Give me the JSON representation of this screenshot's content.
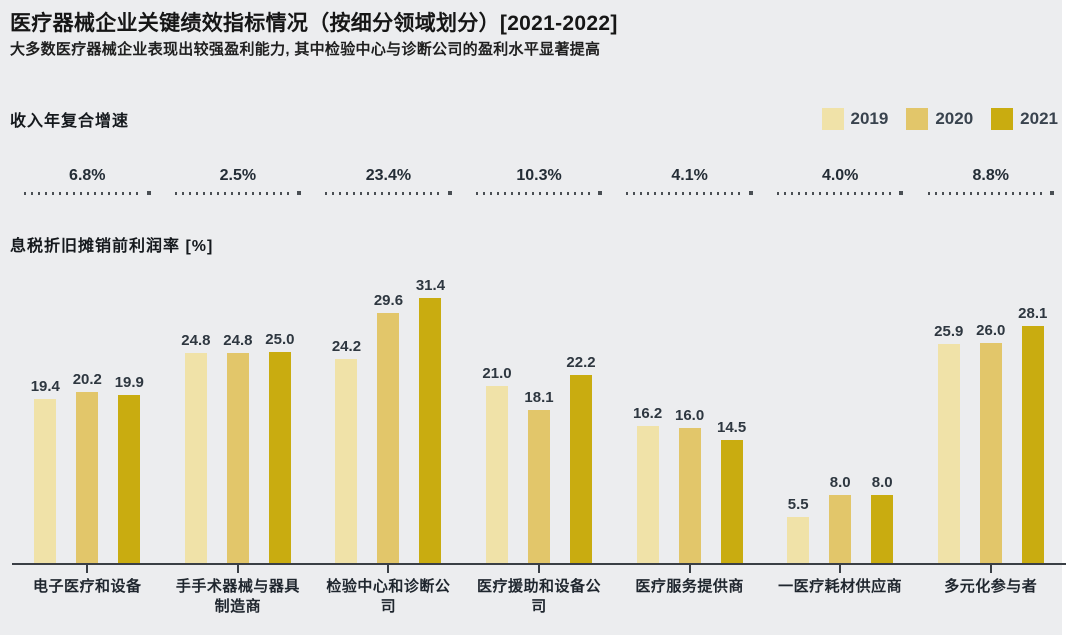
{
  "header": {
    "title": "医疗器械企业关键绩效指标情况（按细分领域划分）[2021-2022]",
    "subtitle": "大多数医疗器械企业表现出较强盈利能力, 其中检验中心与诊断公司的盈利水平显著提高"
  },
  "sections": {
    "cagr_label": "收入年复合增速",
    "ebitda_label": "息税折旧摊销前利润率 [%]"
  },
  "colors": {
    "background": "#ECEDEF",
    "axis": "#3A3F45",
    "year_2019": "#F0E2A8",
    "year_2020": "#E2C66A",
    "year_2021": "#C9AC10"
  },
  "chart_data": {
    "type": "bar",
    "title": "医疗器械企业关键绩效指标情况（按细分领域划分）[2021-2022]",
    "subtitle": "大多数医疗器械企业表现出较强盈利能力, 其中检验中心与诊断公司的盈利水平显著提高",
    "ylabel": "息税折旧摊销前利润率 [%]",
    "xlabel": "",
    "ylim": [
      0,
      35
    ],
    "grid": false,
    "legend_position": "top-right",
    "categories": [
      "电子医疗和设备",
      "手手术器械与器具制造商",
      "检验中心和诊断公司",
      "医疗援助和设备公司",
      "医疗服务提供商",
      "一医疗耗材供应商",
      "多元化参与者"
    ],
    "revenue_cagr": [
      "6.8%",
      "2.5%",
      "23.4%",
      "10.3%",
      "4.1%",
      "4.0%",
      "8.8%"
    ],
    "series": [
      {
        "name": "2019",
        "color": "#F0E2A8",
        "values": [
          19.4,
          24.8,
          24.2,
          21.0,
          16.2,
          5.5,
          25.9
        ]
      },
      {
        "name": "2020",
        "color": "#E2C66A",
        "values": [
          20.2,
          24.8,
          29.6,
          18.1,
          16.0,
          8.0,
          26.0
        ]
      },
      {
        "name": "2021",
        "color": "#C9AC10",
        "values": [
          19.9,
          25.0,
          31.4,
          22.2,
          14.5,
          8.0,
          28.1
        ]
      }
    ]
  }
}
